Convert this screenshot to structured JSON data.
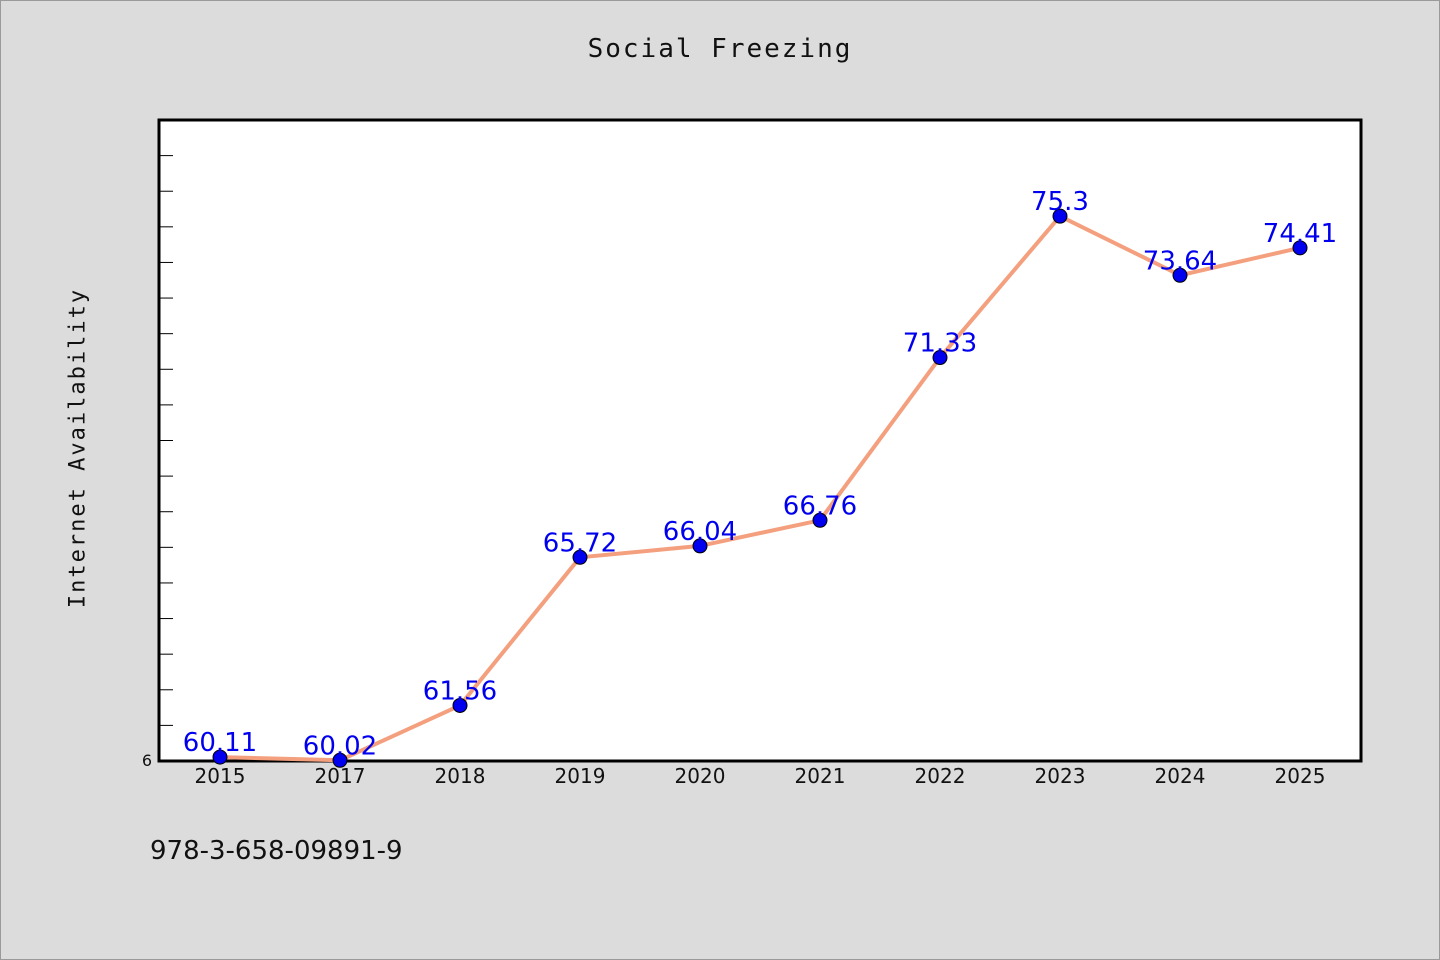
{
  "chart_data": {
    "type": "line",
    "title": "Social Freezing",
    "xlabel": "",
    "ylabel": "Internet Availability",
    "categories": [
      "2015",
      "2017",
      "2018",
      "2019",
      "2020",
      "2021",
      "2022",
      "2023",
      "2024",
      "2025"
    ],
    "series": [
      {
        "values": [
          60.11,
          60.02,
          61.56,
          65.72,
          66.04,
          66.76,
          71.33,
          75.3,
          73.64,
          74.41
        ],
        "labels": [
          "60.11",
          "60.02",
          "61.56",
          "65.72",
          "66.04",
          "66.76",
          "71.33",
          "75.3",
          "73.64",
          "74.41"
        ],
        "line_color": "#f4a07e",
        "marker_color": "#0000ee",
        "label_color": "#0000ee"
      }
    ],
    "ylim": [
      60,
      78
    ],
    "y_tick_label": "6",
    "grid": false
  },
  "footer": {
    "code": "978-3-658-09891-9"
  },
  "colors": {
    "background": "#dcdcdc",
    "plot_background": "#ffffff"
  }
}
